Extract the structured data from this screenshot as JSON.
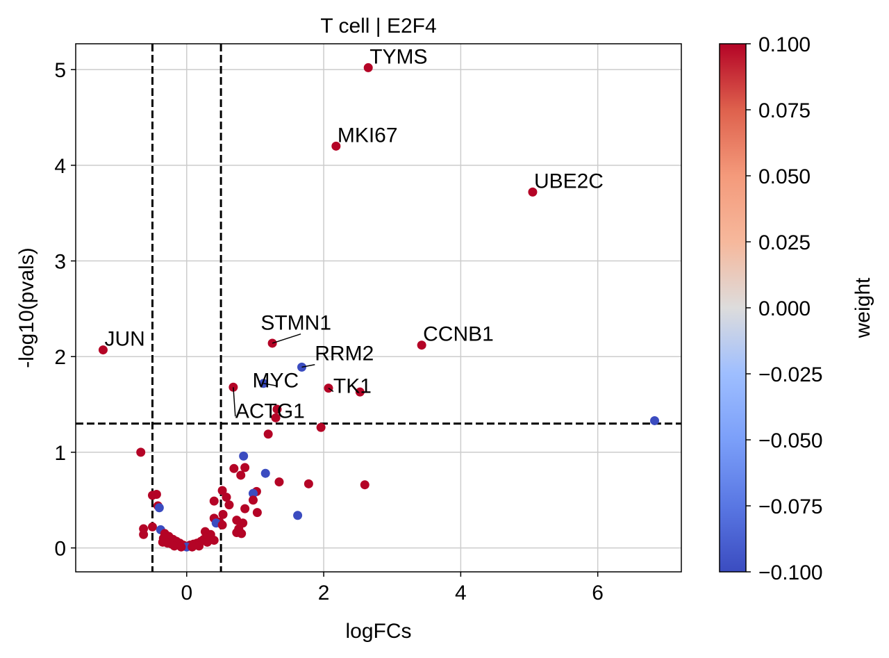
{
  "chart_data": {
    "type": "scatter",
    "title": "T cell | E2F4",
    "xlabel": "logFCs",
    "ylabel": "-log10(pvals)",
    "xlim": [
      -1.62,
      7.22
    ],
    "ylim": [
      -0.25,
      5.27
    ],
    "xticks": [
      0,
      2,
      4,
      6
    ],
    "yticks": [
      0,
      1,
      2,
      3,
      4,
      5
    ],
    "grid": true,
    "thresholds": {
      "logFC_vertical": [
        -0.5,
        0.5
      ],
      "pval_horizontal": 1.3
    },
    "colorbar": {
      "label": "weight",
      "range": [
        -0.1,
        0.1
      ],
      "ticks": [
        "0.100",
        "0.075",
        "0.050",
        "0.025",
        "0.000",
        "−0.025",
        "−0.050",
        "−0.075",
        "−0.100"
      ],
      "tick_values": [
        0.1,
        0.075,
        0.05,
        0.025,
        0,
        -0.025,
        -0.05,
        -0.075,
        -0.1
      ],
      "colormap": "coolwarm",
      "low_color": "#3b4cc0",
      "high_color": "#b40426"
    },
    "points": [
      {
        "x": 2.65,
        "y": 5.02,
        "w": 0.1
      },
      {
        "x": 2.18,
        "y": 4.2,
        "w": 0.1
      },
      {
        "x": 5.05,
        "y": 3.72,
        "w": 0.1
      },
      {
        "x": 1.25,
        "y": 2.14,
        "w": 0.1
      },
      {
        "x": 3.43,
        "y": 2.12,
        "w": 0.1
      },
      {
        "x": -1.22,
        "y": 2.07,
        "w": 0.1
      },
      {
        "x": 1.68,
        "y": 1.89,
        "w": -0.1
      },
      {
        "x": 1.12,
        "y": 1.72,
        "w": -0.1
      },
      {
        "x": 0.68,
        "y": 1.68,
        "w": 0.1
      },
      {
        "x": 2.07,
        "y": 1.67,
        "w": 0.1
      },
      {
        "x": 2.53,
        "y": 1.63,
        "w": 0.1
      },
      {
        "x": 1.32,
        "y": 1.45,
        "w": 0.1
      },
      {
        "x": 1.3,
        "y": 1.36,
        "w": 0.1
      },
      {
        "x": 6.83,
        "y": 1.33,
        "w": -0.1
      },
      {
        "x": 1.96,
        "y": 1.26,
        "w": 0.1
      },
      {
        "x": 1.19,
        "y": 1.19,
        "w": 0.1
      },
      {
        "x": -0.67,
        "y": 1.0,
        "w": 0.1
      },
      {
        "x": 0.83,
        "y": 0.96,
        "w": -0.1
      },
      {
        "x": 0.85,
        "y": 0.84,
        "w": 0.1
      },
      {
        "x": 0.69,
        "y": 0.83,
        "w": 0.1
      },
      {
        "x": 1.15,
        "y": 0.78,
        "w": -0.1
      },
      {
        "x": 0.79,
        "y": 0.76,
        "w": 0.1
      },
      {
        "x": 1.35,
        "y": 0.69,
        "w": 0.1
      },
      {
        "x": 1.78,
        "y": 0.67,
        "w": 0.1
      },
      {
        "x": 2.6,
        "y": 0.66,
        "w": 0.1
      },
      {
        "x": 0.52,
        "y": 0.6,
        "w": 0.1
      },
      {
        "x": 1.02,
        "y": 0.59,
        "w": 0.1
      },
      {
        "x": 0.97,
        "y": 0.57,
        "w": -0.1
      },
      {
        "x": -0.44,
        "y": 0.56,
        "w": 0.1
      },
      {
        "x": -0.5,
        "y": 0.55,
        "w": 0.1
      },
      {
        "x": 0.58,
        "y": 0.53,
        "w": 0.1
      },
      {
        "x": 0.97,
        "y": 0.5,
        "w": 0.1
      },
      {
        "x": 0.4,
        "y": 0.49,
        "w": 0.1
      },
      {
        "x": 0.62,
        "y": 0.45,
        "w": 0.1
      },
      {
        "x": -0.42,
        "y": 0.44,
        "w": 0.1
      },
      {
        "x": -0.4,
        "y": 0.42,
        "w": -0.1
      },
      {
        "x": 0.85,
        "y": 0.41,
        "w": 0.1
      },
      {
        "x": 1.03,
        "y": 0.37,
        "w": 0.1
      },
      {
        "x": 0.53,
        "y": 0.35,
        "w": 0.1
      },
      {
        "x": 1.62,
        "y": 0.34,
        "w": -0.1
      },
      {
        "x": 0.4,
        "y": 0.31,
        "w": 0.1
      },
      {
        "x": 0.73,
        "y": 0.29,
        "w": 0.1
      },
      {
        "x": 0.48,
        "y": 0.27,
        "w": 0.1
      },
      {
        "x": 0.43,
        "y": 0.26,
        "w": -0.1
      },
      {
        "x": 0.82,
        "y": 0.26,
        "w": 0.1
      },
      {
        "x": 0.52,
        "y": 0.24,
        "w": 0.1
      },
      {
        "x": -0.5,
        "y": 0.22,
        "w": 0.1
      },
      {
        "x": -0.63,
        "y": 0.2,
        "w": 0.1
      },
      {
        "x": 0.76,
        "y": 0.2,
        "w": 0.1
      },
      {
        "x": -0.38,
        "y": 0.19,
        "w": -0.1
      },
      {
        "x": 0.27,
        "y": 0.17,
        "w": 0.1
      },
      {
        "x": 0.73,
        "y": 0.16,
        "w": 0.1
      },
      {
        "x": -0.32,
        "y": 0.15,
        "w": 0.1
      },
      {
        "x": 0.35,
        "y": 0.14,
        "w": 0.1
      },
      {
        "x": -0.63,
        "y": 0.14,
        "w": 0.1
      },
      {
        "x": 0.8,
        "y": 0.15,
        "w": 0.1
      },
      {
        "x": -0.26,
        "y": 0.12,
        "w": 0.1
      },
      {
        "x": 0.33,
        "y": 0.11,
        "w": 0.1
      },
      {
        "x": -0.34,
        "y": 0.1,
        "w": 0.1
      },
      {
        "x": -0.2,
        "y": 0.09,
        "w": 0.1
      },
      {
        "x": 0.25,
        "y": 0.09,
        "w": 0.1
      },
      {
        "x": 0.4,
        "y": 0.08,
        "w": 0.1
      },
      {
        "x": -0.15,
        "y": 0.07,
        "w": 0.1
      },
      {
        "x": 0.21,
        "y": 0.07,
        "w": 0.1
      },
      {
        "x": 0.3,
        "y": 0.06,
        "w": 0.1
      },
      {
        "x": -0.35,
        "y": 0.06,
        "w": 0.1
      },
      {
        "x": -0.28,
        "y": 0.05,
        "w": 0.1
      },
      {
        "x": -0.1,
        "y": 0.05,
        "w": 0.1
      },
      {
        "x": 0.15,
        "y": 0.05,
        "w": 0.1
      },
      {
        "x": -0.22,
        "y": 0.04,
        "w": 0.1
      },
      {
        "x": 0.1,
        "y": 0.04,
        "w": 0.1
      },
      {
        "x": -0.05,
        "y": 0.03,
        "w": 0.1
      },
      {
        "x": 0.05,
        "y": 0.03,
        "w": 0.1
      },
      {
        "x": -0.18,
        "y": 0.02,
        "w": 0.1
      },
      {
        "x": 0.18,
        "y": 0.02,
        "w": 0.1
      },
      {
        "x": 0.0,
        "y": 0.01,
        "w": -0.1
      },
      {
        "x": 0.08,
        "y": 0.01,
        "w": 0.1
      },
      {
        "x": -0.08,
        "y": 0.01,
        "w": 0.1
      }
    ],
    "annotations": [
      {
        "label": "TYMS",
        "x": 2.65,
        "y": 5.02
      },
      {
        "label": "MKI67",
        "x": 2.18,
        "y": 4.2
      },
      {
        "label": "UBE2C",
        "x": 5.05,
        "y": 3.72
      },
      {
        "label": "STMN1",
        "x": 1.25,
        "y": 2.14,
        "tx": 1.08,
        "ty": 2.28
      },
      {
        "label": "CCNB1",
        "x": 3.43,
        "y": 2.12
      },
      {
        "label": "JUN",
        "x": -1.22,
        "y": 2.07
      },
      {
        "label": "RRM2",
        "x": 1.68,
        "y": 1.89,
        "tx": 1.87,
        "ty": 1.96
      },
      {
        "label": "MYC",
        "x": 1.12,
        "y": 1.72,
        "tx": 0.96,
        "ty": 1.68
      },
      {
        "label": "ACTG1",
        "x": 0.68,
        "y": 1.68,
        "tx": 0.71,
        "ty": 1.36
      },
      {
        "label": "TK1",
        "x": 2.07,
        "y": 1.67,
        "tx": 2.14,
        "ty": 1.62
      }
    ]
  }
}
